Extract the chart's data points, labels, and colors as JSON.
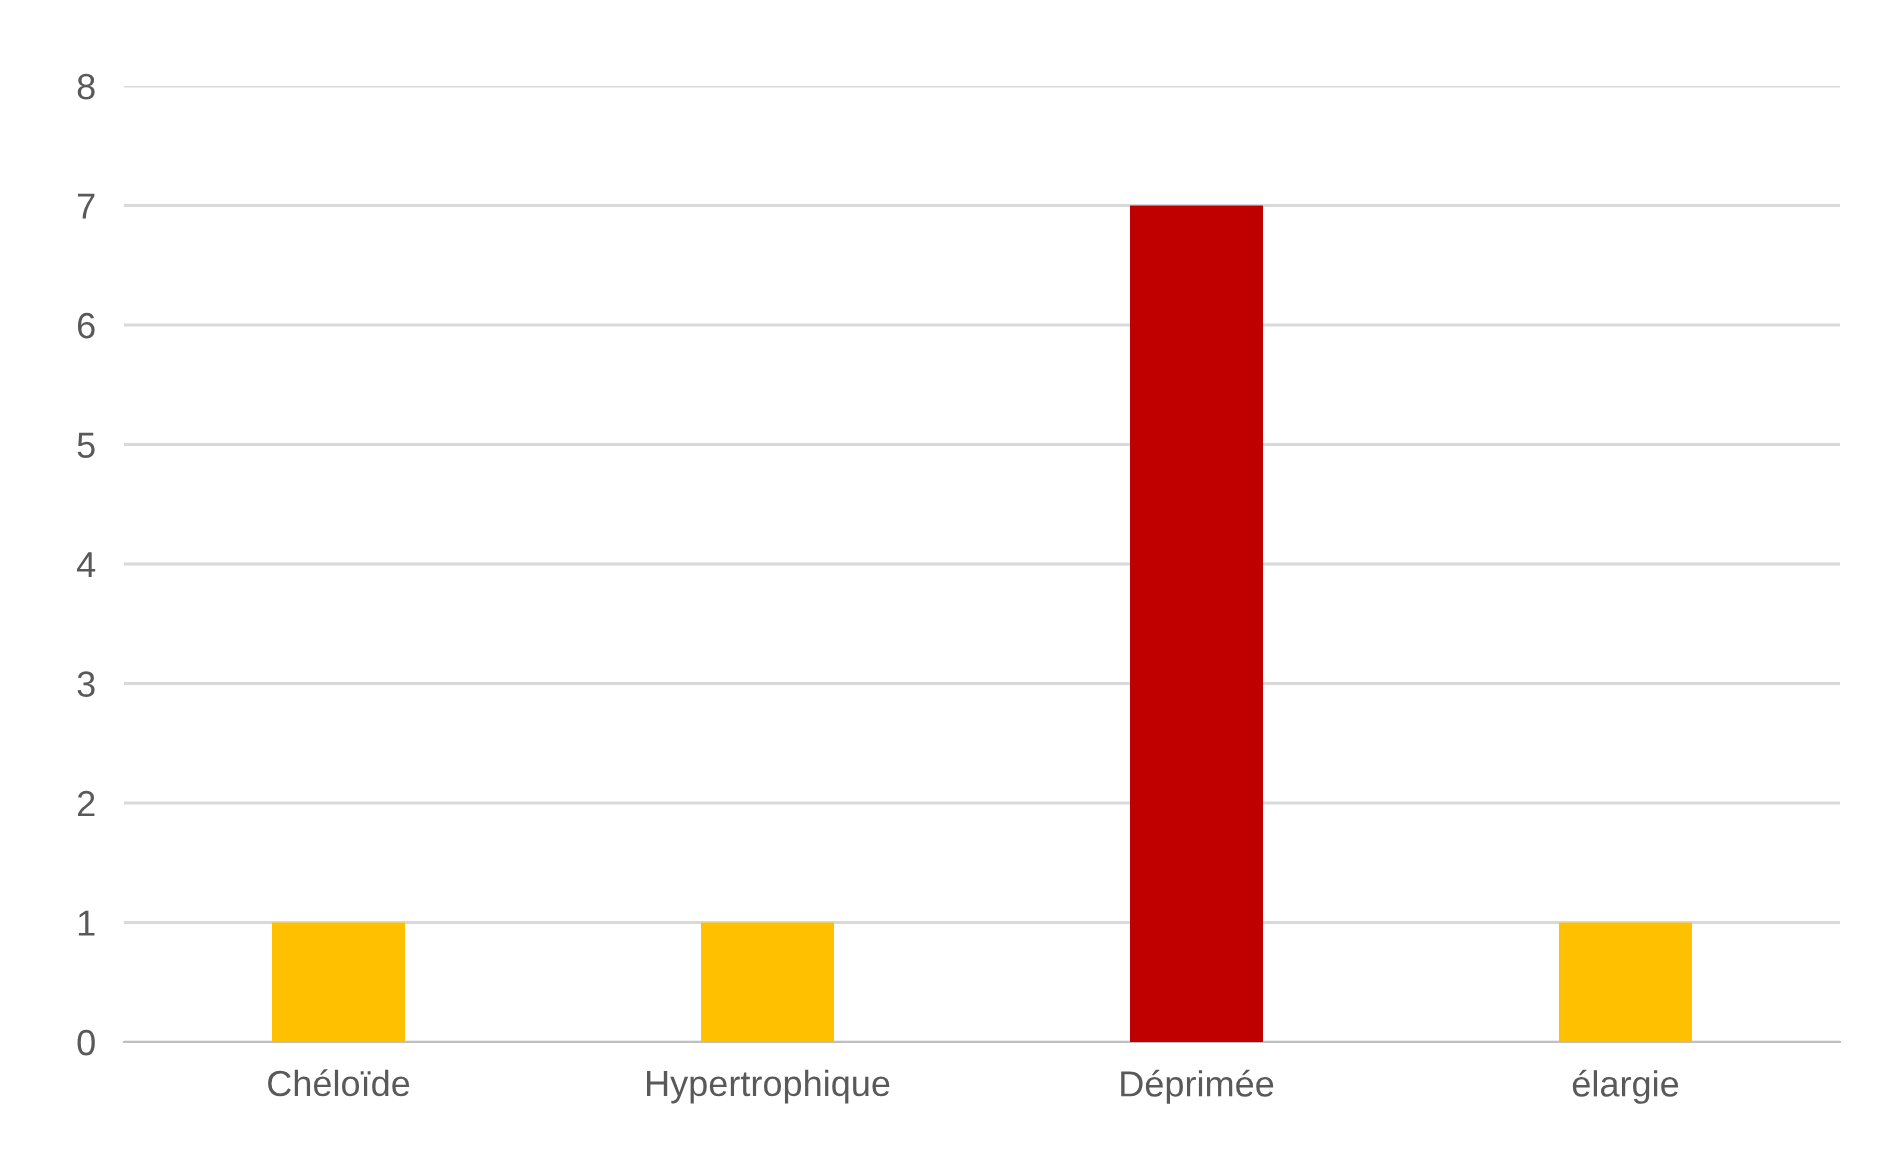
{
  "chart_data": {
    "type": "bar",
    "categories": [
      "Chéloïde",
      "Hypertrophique",
      "Déprimée",
      "élargie"
    ],
    "values": [
      1,
      1,
      7,
      1
    ],
    "colors": [
      "#ffc000",
      "#ffc000",
      "#c00000",
      "#ffc000"
    ],
    "ylim": [
      0,
      8
    ],
    "yticks": [
      0,
      1,
      2,
      3,
      4,
      5,
      6,
      7,
      8
    ],
    "grid": "y"
  }
}
